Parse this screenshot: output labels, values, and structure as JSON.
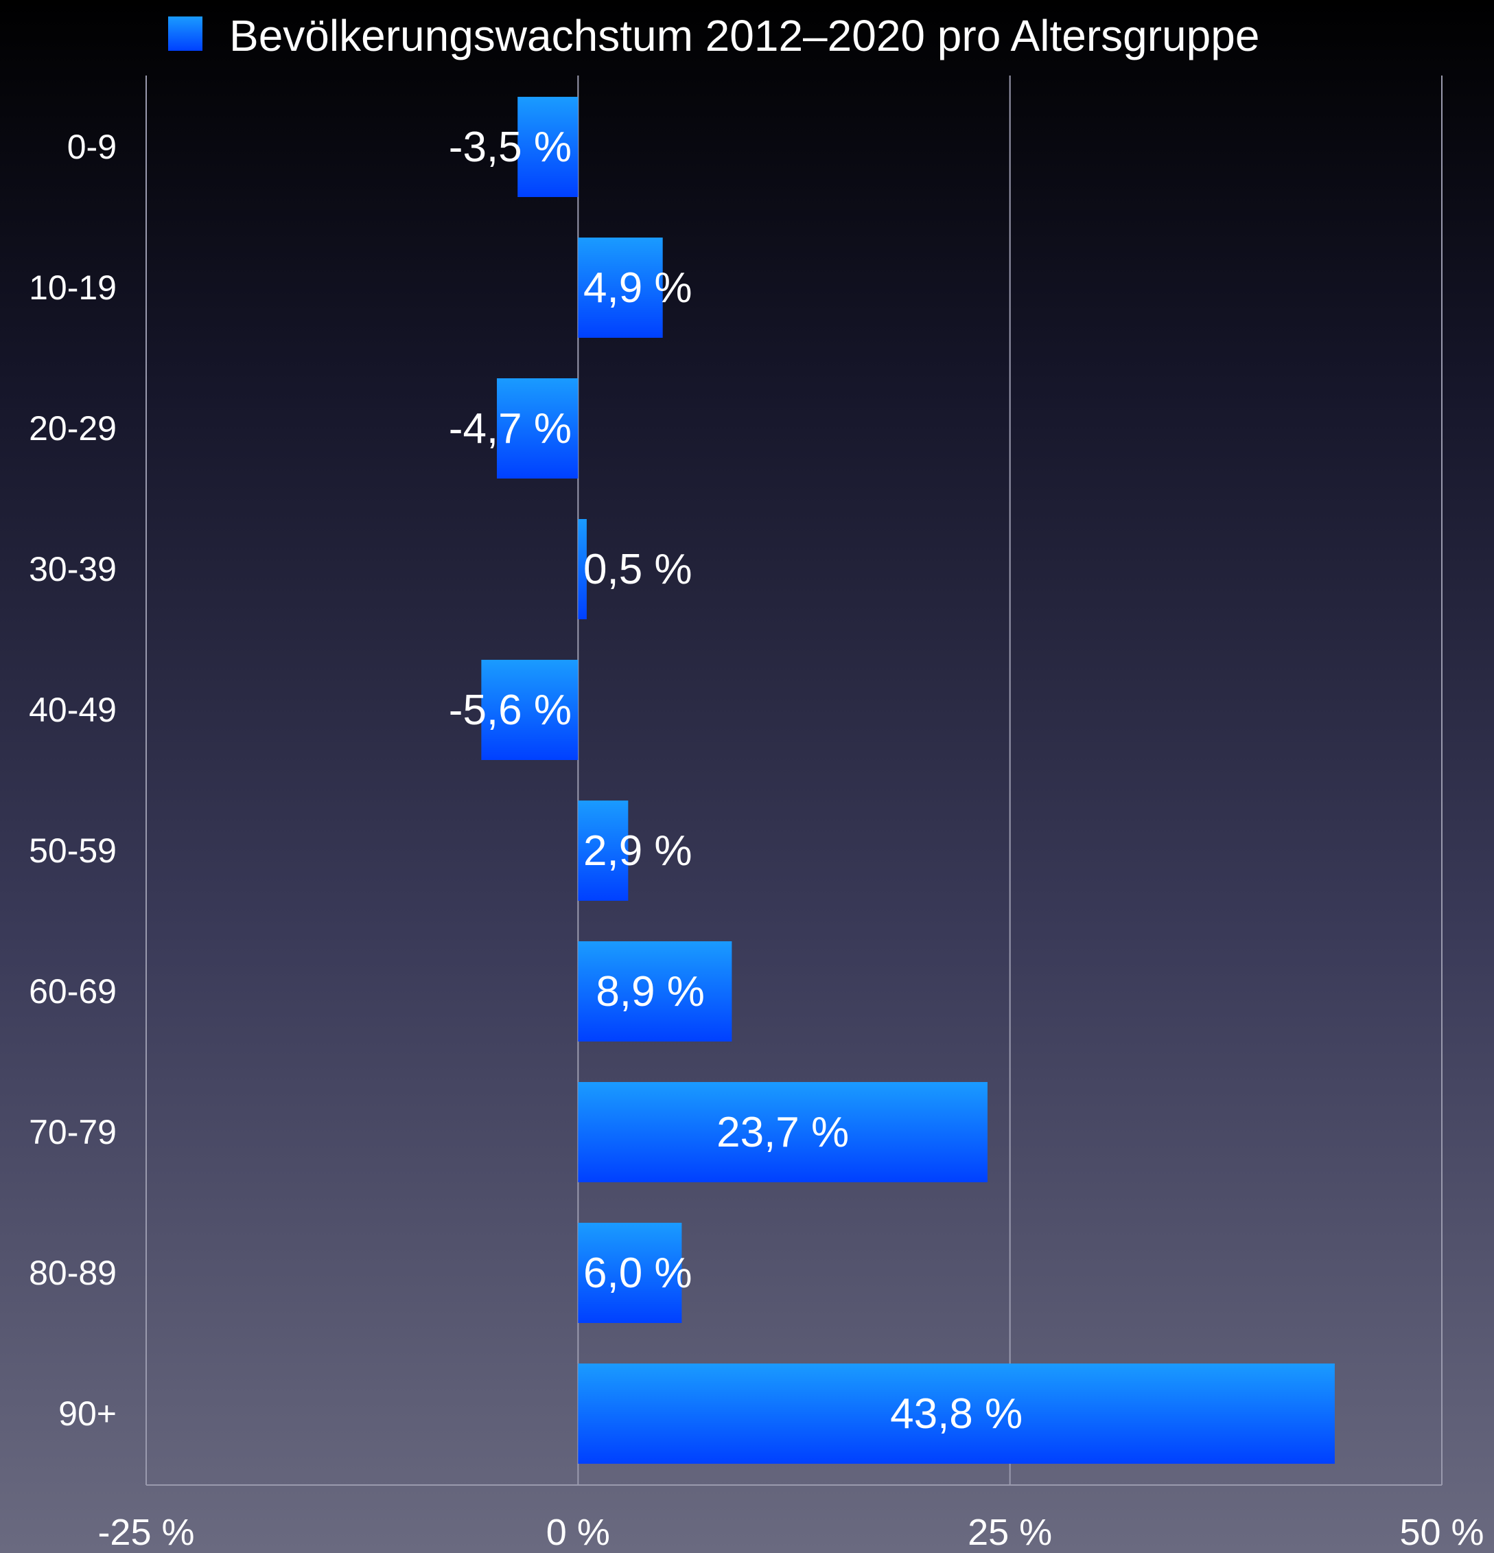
{
  "chart_data": {
    "type": "bar",
    "orientation": "horizontal",
    "categories": [
      "0-9",
      "10-19",
      "20-29",
      "30-39",
      "40-49",
      "50-59",
      "60-69",
      "70-79",
      "80-89",
      "90+"
    ],
    "series": [
      {
        "name": "Bevölkerungswachstum 2012–2020 pro Altersgruppe",
        "values": [
          -3.5,
          4.9,
          -4.7,
          0.5,
          -5.6,
          2.9,
          8.9,
          23.7,
          6.0,
          43.8
        ],
        "value_labels": [
          "-3,5 %",
          "4,9 %",
          "-4,7 %",
          "0,5 %",
          "-5,6 %",
          "2,9 %",
          "8,9 %",
          "23,7 %",
          "6,0 %",
          "43,8 %"
        ]
      }
    ],
    "xlim": [
      -25,
      50
    ],
    "xticks": [
      -25,
      0,
      25,
      50
    ],
    "xtick_labels": [
      "-25 %",
      "0 %",
      "25 %",
      "50 %"
    ],
    "grid": true,
    "legend_position": "top",
    "colors": {
      "bar_top": "#1a9bff",
      "bar_bottom": "#0040ff",
      "grid": "#9a9aae",
      "text": "#ffffff"
    }
  }
}
